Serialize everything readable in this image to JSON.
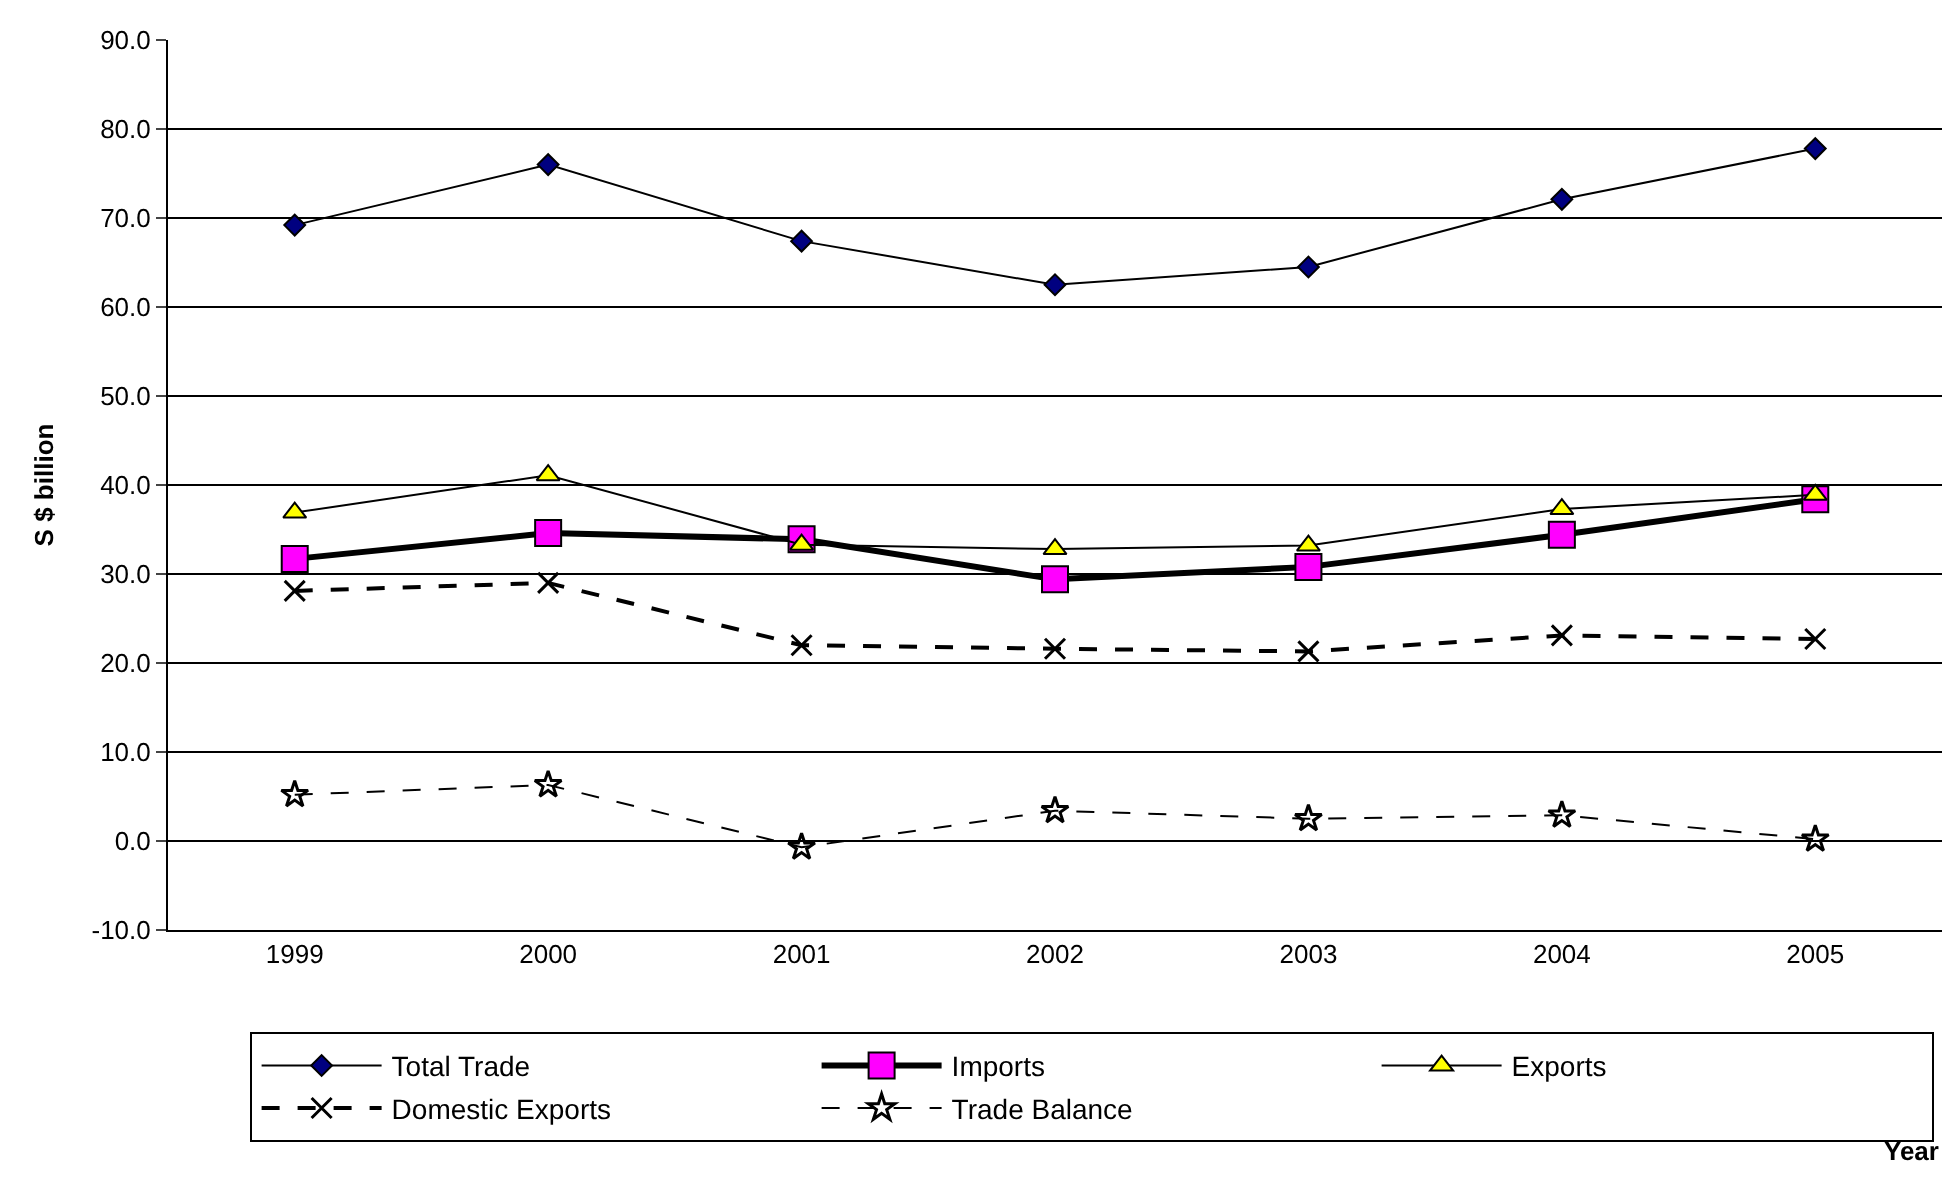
{
  "chart_data": {
    "type": "line",
    "annotations": [
      "Year"
    ],
    "ylabel": "S $ billion",
    "categories": [
      "1999",
      "2000",
      "2001",
      "2002",
      "2003",
      "2004",
      "2005"
    ],
    "series": [
      {
        "name": "Total Trade",
        "color": "#000080",
        "marker": "diamond",
        "line_style": "solid",
        "values": [
          69.2,
          76.0,
          67.4,
          62.5,
          64.5,
          72.1,
          77.8
        ]
      },
      {
        "name": "Imports",
        "color": "#ff00ff",
        "marker": "square",
        "line_style": "solid",
        "values": [
          31.7,
          34.6,
          33.9,
          29.4,
          30.8,
          34.4,
          38.4
        ]
      },
      {
        "name": "Exports",
        "color": "#ffff00",
        "marker": "triangle",
        "line_style": "solid",
        "values": [
          36.9,
          41.1,
          33.3,
          32.8,
          33.2,
          37.3,
          38.9
        ]
      },
      {
        "name": "Domestic Exports",
        "color": "#000000",
        "marker": "cross",
        "line_style": "dashed",
        "values": [
          28.1,
          29.0,
          22.0,
          21.6,
          21.3,
          23.1,
          22.7
        ]
      },
      {
        "name": "Trade Balance",
        "color": "#000000",
        "marker": "star",
        "line_style": "dashed",
        "values": [
          5.2,
          6.3,
          -0.7,
          3.4,
          2.5,
          2.9,
          0.2
        ]
      }
    ],
    "ylim": [
      -10,
      90
    ],
    "yticks": [
      {
        "value": -10,
        "label": "-10.0"
      },
      {
        "value": 0,
        "label": "0.0"
      },
      {
        "value": 10,
        "label": "10.0"
      },
      {
        "value": 20,
        "label": "20.0"
      },
      {
        "value": 30,
        "label": "30.0"
      },
      {
        "value": 40,
        "label": "40.0"
      },
      {
        "value": 50,
        "label": "50.0"
      },
      {
        "value": 60,
        "label": "60.0"
      },
      {
        "value": 70,
        "label": "70.0"
      },
      {
        "value": 80,
        "label": "80.0"
      },
      {
        "value": 90,
        "label": "90.0"
      }
    ],
    "grid": "y",
    "legend": "bottom"
  }
}
